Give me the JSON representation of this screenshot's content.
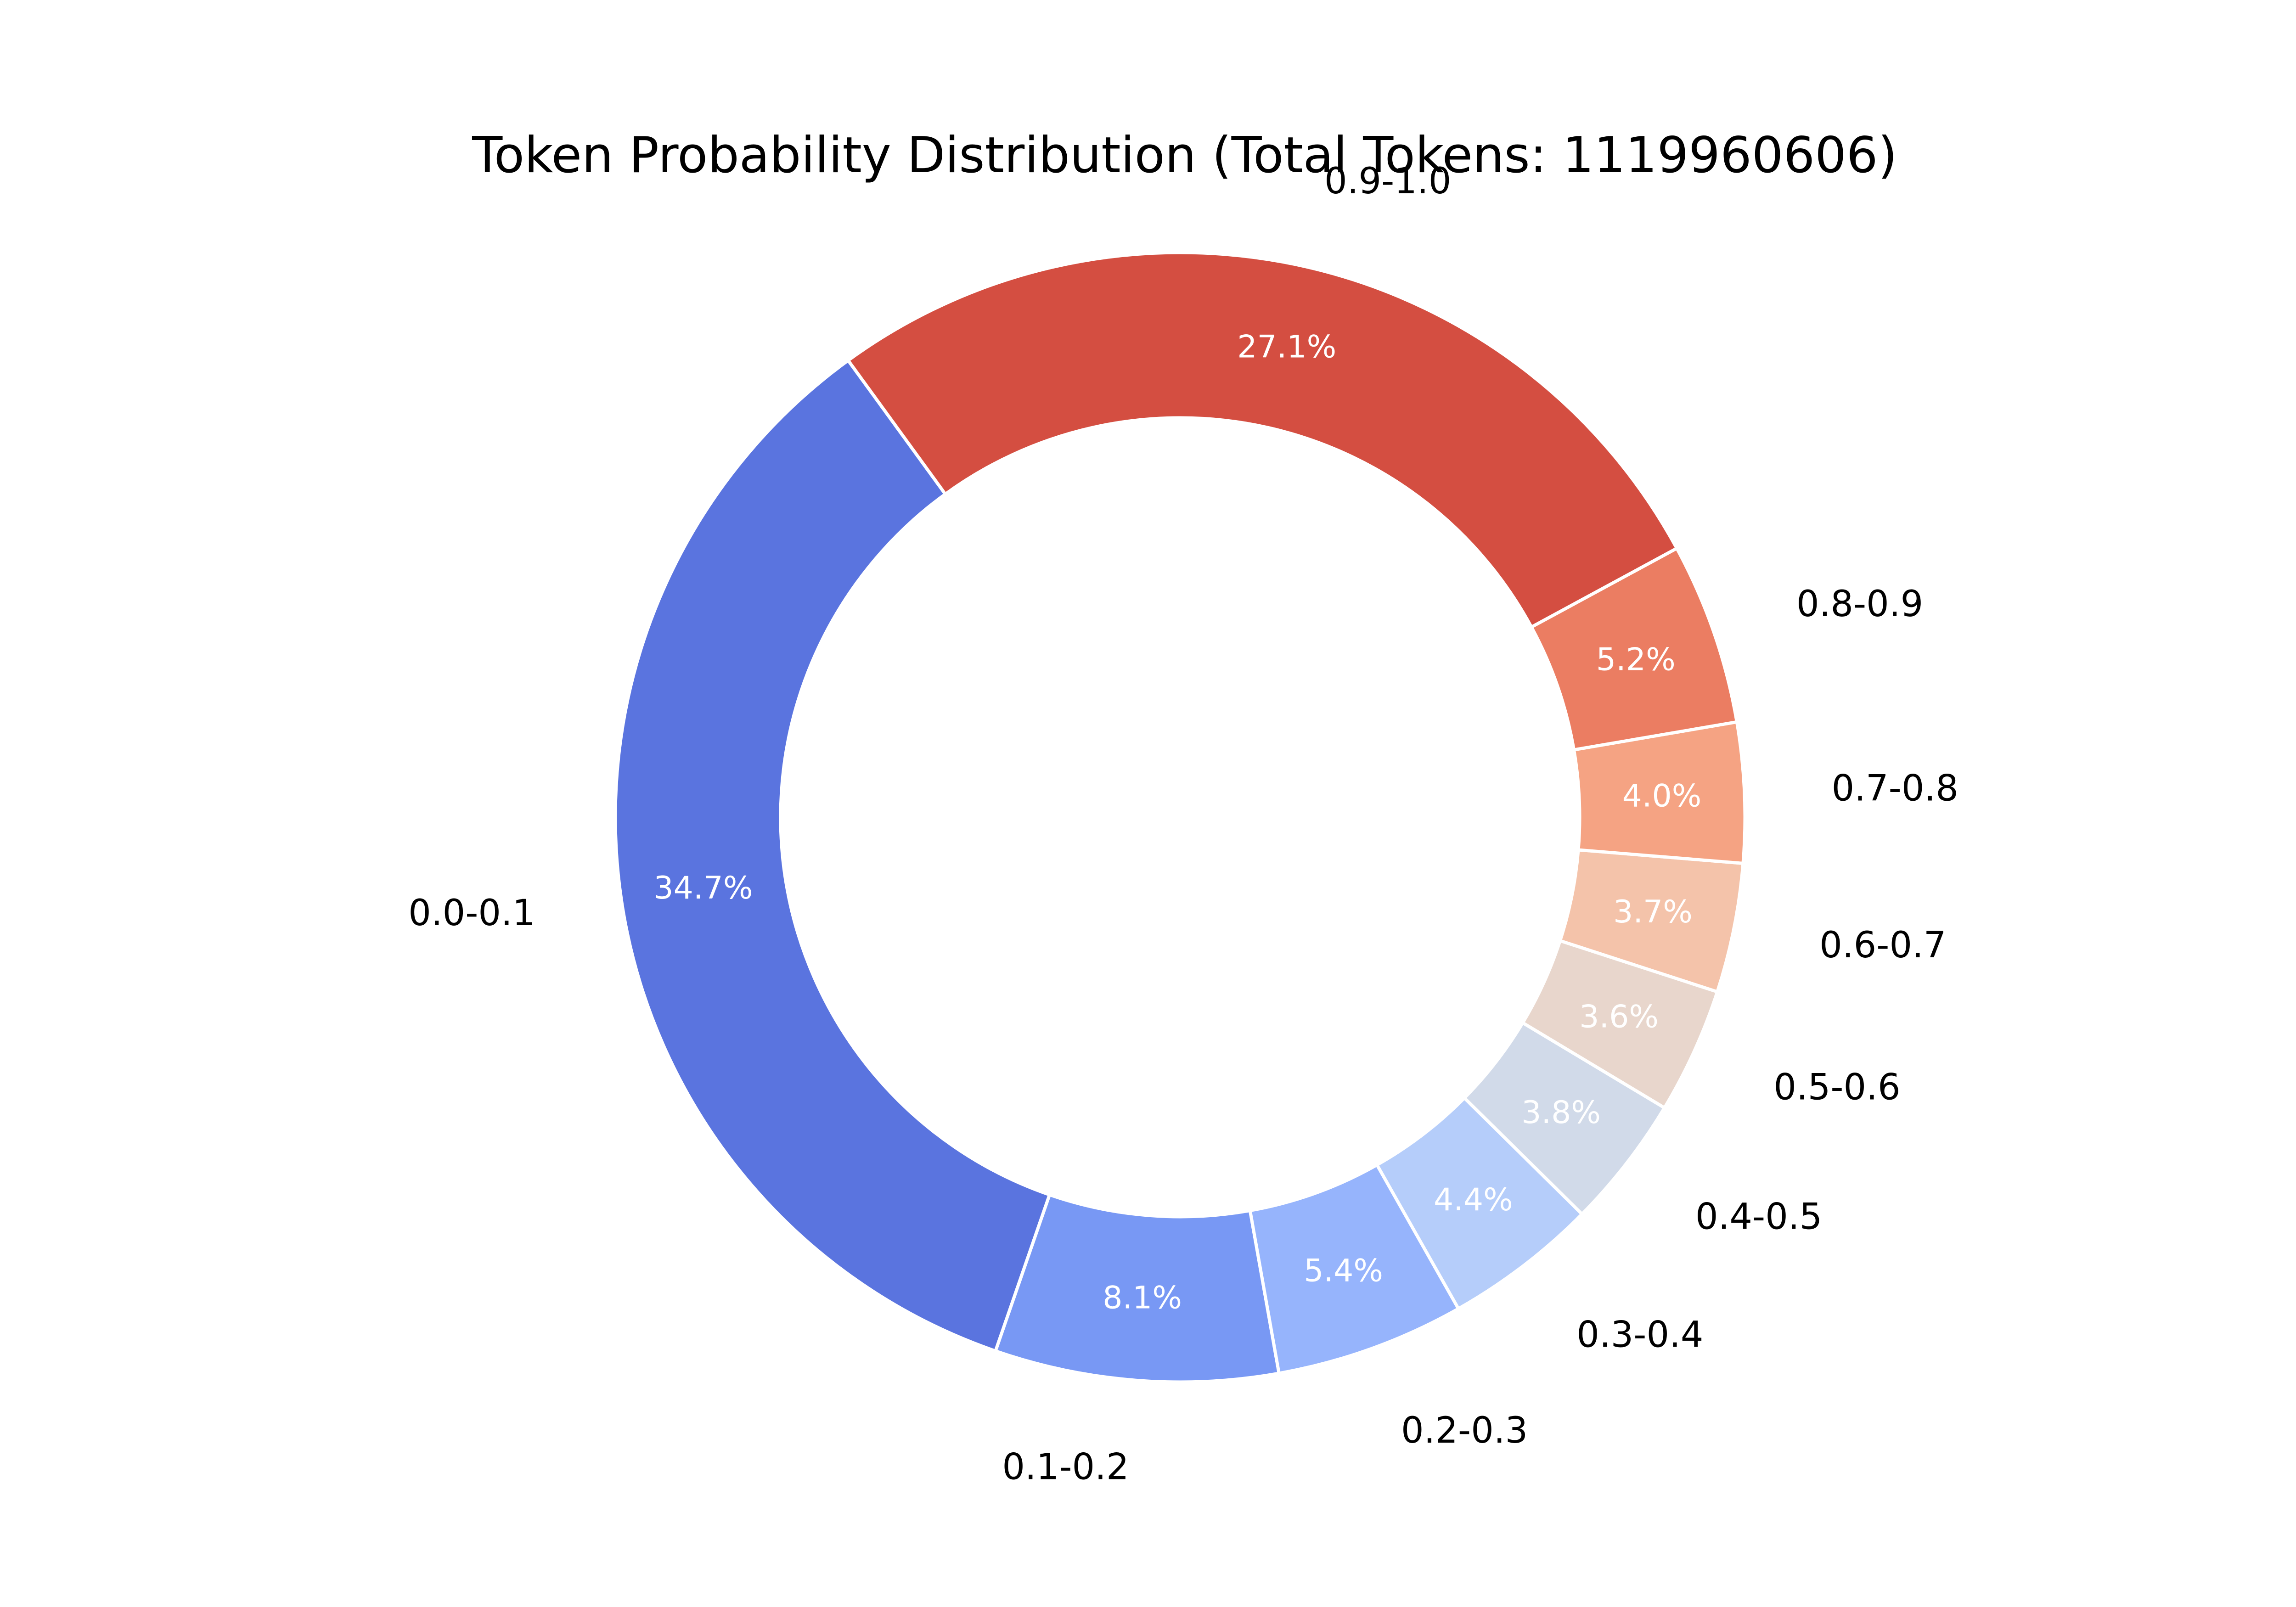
{
  "chart_data": {
    "type": "pie",
    "title": "Token Probability Distribution (Total Tokens: 1119960606)",
    "donut": true,
    "start_angle_deg": 126,
    "direction": "counterclockwise",
    "legend": "none",
    "slices": [
      {
        "label": "0.0-0.1",
        "value": 34.7,
        "pct_label": "34.7%",
        "color": "#5A74DF"
      },
      {
        "label": "0.1-0.2",
        "value": 8.1,
        "pct_label": "8.1%",
        "color": "#7898F4"
      },
      {
        "label": "0.2-0.3",
        "value": 5.4,
        "pct_label": "5.4%",
        "color": "#96B4FC"
      },
      {
        "label": "0.3-0.4",
        "value": 4.4,
        "pct_label": "4.4%",
        "color": "#B5CDFA"
      },
      {
        "label": "0.4-0.5",
        "value": 3.8,
        "pct_label": "3.8%",
        "color": "#D1DAE9"
      },
      {
        "label": "0.5-0.6",
        "value": 3.6,
        "pct_label": "3.6%",
        "color": "#E8D6CC"
      },
      {
        "label": "0.6-0.7",
        "value": 3.7,
        "pct_label": "3.7%",
        "color": "#F4C3AA"
      },
      {
        "label": "0.7-0.8",
        "value": 4.0,
        "pct_label": "4.0%",
        "color": "#F5A383"
      },
      {
        "label": "0.8-0.9",
        "value": 5.2,
        "pct_label": "5.2%",
        "color": "#EB7D62"
      },
      {
        "label": "0.9-1.0",
        "value": 27.1,
        "pct_label": "27.1%",
        "color": "#D44E41"
      }
    ]
  }
}
